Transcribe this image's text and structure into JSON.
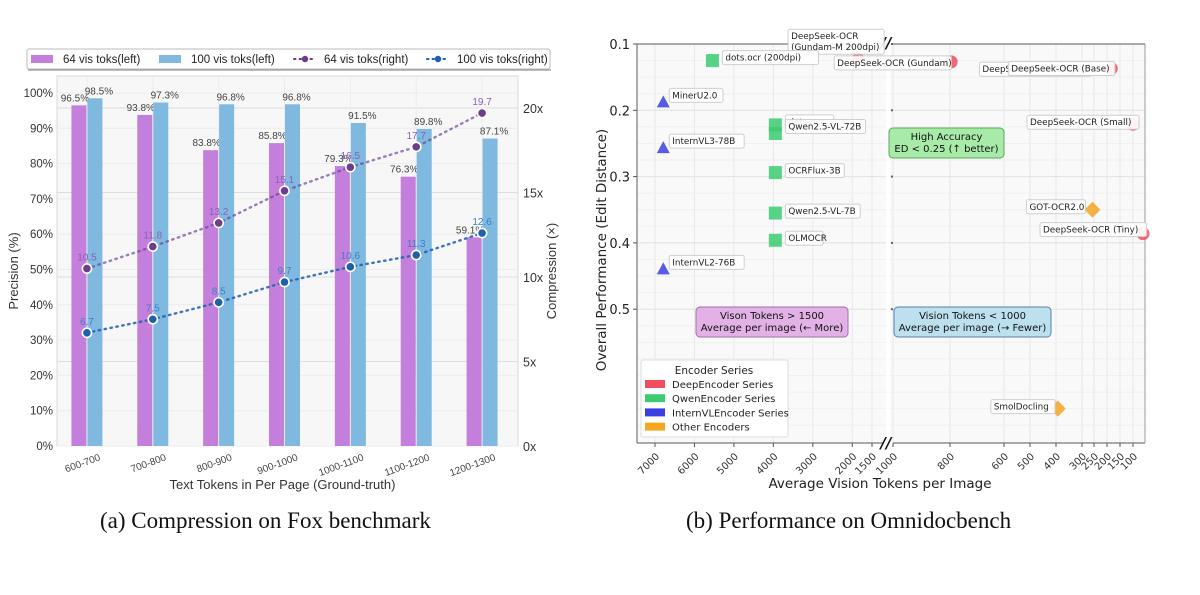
{
  "captions": {
    "a": "(a) Compression on Fox benchmark",
    "b": "(b) Performance on Omnidocbench"
  },
  "chart_data": [
    {
      "type": "bar",
      "title": "",
      "xlabel": "Text Tokens in Per Page (Ground-truth)",
      "ylabel": "Precision (%)",
      "ylabel_right": "Compression (×)",
      "categories": [
        "600-700",
        "700-800",
        "800-900",
        "900-1000",
        "1000-1100",
        "1100-1200",
        "1200-1300"
      ],
      "ylim": [
        0,
        100
      ],
      "ylim_right": [
        0,
        23.3
      ],
      "yticks": [
        "0%",
        "10%",
        "20%",
        "30%",
        "40%",
        "50%",
        "60%",
        "70%",
        "80%",
        "90%",
        "100%"
      ],
      "yticks_right": [
        "0x",
        "5x",
        "10x",
        "15x",
        "20x"
      ],
      "legend_position": "top",
      "grid": true,
      "series": [
        {
          "name": "64 vis toks(left)",
          "kind": "bar",
          "axis": "left",
          "color": "#c47fdc",
          "values": [
            96.5,
            93.8,
            83.8,
            85.8,
            79.3,
            76.3,
            59.1
          ],
          "labels": [
            "96.5%",
            "93.8%",
            "83.8%",
            "85.8%",
            "79.3%",
            "76.3%",
            "59.1%"
          ]
        },
        {
          "name": "100 vis toks(left)",
          "kind": "bar",
          "axis": "left",
          "color": "#7fb9e0",
          "values": [
            98.5,
            97.3,
            96.8,
            96.8,
            91.5,
            89.8,
            87.1
          ],
          "labels": [
            "98.5%",
            "97.3%",
            "96.8%",
            "96.8%",
            "91.5%",
            "89.8%",
            "87.1%"
          ]
        },
        {
          "name": "64 vis toks(right)",
          "kind": "line",
          "axis": "right",
          "color": "#6a3d8f",
          "values": [
            10.5,
            11.8,
            13.2,
            15.1,
            16.5,
            17.7,
            19.7
          ],
          "labels": [
            "10.5",
            "11.8",
            "13.2",
            "15.1",
            "16.5",
            "17.7",
            "19.7"
          ]
        },
        {
          "name": "100 vis toks(right)",
          "kind": "line",
          "axis": "right",
          "color": "#1f5fb0",
          "values": [
            6.7,
            7.5,
            8.5,
            9.7,
            10.6,
            11.3,
            12.6
          ],
          "labels": [
            "6.7",
            "7.5",
            "8.5",
            "9.7",
            "10.6",
            "11.3",
            "12.6"
          ]
        }
      ]
    },
    {
      "type": "scatter",
      "title": "",
      "xlabel": "Average Vision Tokens per Image",
      "ylabel": "Overall Performance (Edit Distance)",
      "x_axis": "broken",
      "x_left_segment_ticks": [
        7000,
        6000,
        5000,
        4000,
        3000,
        2000,
        1500
      ],
      "x_right_segment_ticks": [
        1000,
        800,
        600,
        500,
        400,
        300,
        250,
        200,
        150,
        100
      ],
      "yticks": [
        0.1,
        0.2,
        0.3,
        0.4,
        0.5
      ],
      "ylim": [
        0.1,
        0.7
      ],
      "y_inverted": true,
      "grid": true,
      "legend_title": "Encoder Series",
      "legend_position": "bottom-left",
      "legend": [
        {
          "name": "DeepEncoder Series",
          "color": "#f04e5e"
        },
        {
          "name": "QwenEncoder Series",
          "color": "#3ccb6e"
        },
        {
          "name": "InternVLEncoder Series",
          "color": "#3b3fe0"
        },
        {
          "name": "Other Encoders",
          "color": "#f5a623"
        }
      ],
      "points": [
        {
          "label": "DeepSeek-OCR (Gundam-M 200dpi)",
          "series": "DeepEncoder Series",
          "marker": "circle",
          "x": 1853,
          "y": 0.123
        },
        {
          "label": "DeepSeek-OCR (Gundam)",
          "series": "DeepEncoder Series",
          "marker": "circle",
          "x": 795,
          "y": 0.127
        },
        {
          "label": "DeepSeek-OCR (Large)",
          "series": "DeepEncoder Series",
          "marker": "circle",
          "x": 285,
          "y": 0.138
        },
        {
          "label": "DeepSeek-OCR (Base)",
          "series": "DeepEncoder Series",
          "marker": "circle",
          "x": 182,
          "y": 0.137
        },
        {
          "label": "DeepSeek-OCR (Small)",
          "series": "DeepEncoder Series",
          "marker": "circle",
          "x": 100,
          "y": 0.221
        },
        {
          "label": "DeepSeek-OCR (Tiny)",
          "series": "DeepEncoder Series",
          "marker": "circle",
          "x": 64,
          "y": 0.386
        },
        {
          "label": "dots.ocr (200dpi)",
          "series": "QwenEncoder Series",
          "marker": "square",
          "x": 5545,
          "y": 0.125
        },
        {
          "label": "dots.ocr",
          "series": "QwenEncoder Series",
          "marker": "square",
          "x": 3950,
          "y": 0.222
        },
        {
          "label": "Qwen2.5-VL-72B",
          "series": "QwenEncoder Series",
          "marker": "square",
          "x": 3950,
          "y": 0.235
        },
        {
          "label": "OCRFlux-3B",
          "series": "QwenEncoder Series",
          "marker": "square",
          "x": 3950,
          "y": 0.294
        },
        {
          "label": "Qwen2.5-VL-7B",
          "series": "QwenEncoder Series",
          "marker": "square",
          "x": 3950,
          "y": 0.355
        },
        {
          "label": "OLMOCR",
          "series": "QwenEncoder Series",
          "marker": "square",
          "x": 3950,
          "y": 0.396
        },
        {
          "label": "MinerU2.0",
          "series": "InternVLEncoder Series",
          "marker": "triangle",
          "x": 6790,
          "y": 0.188
        },
        {
          "label": "InternVL3-78B",
          "series": "InternVLEncoder Series",
          "marker": "triangle",
          "x": 6790,
          "y": 0.257
        },
        {
          "label": "InternVL2-76B",
          "series": "InternVLEncoder Series",
          "marker": "triangle",
          "x": 6790,
          "y": 0.44
        },
        {
          "label": "GOT-OCR2.0",
          "series": "Other Encoders",
          "marker": "diamond",
          "x": 256,
          "y": 0.35
        },
        {
          "label": "SmolDocling",
          "series": "Other Encoders",
          "marker": "diamond",
          "x": 392,
          "y": 0.65
        }
      ],
      "annotations": [
        {
          "id": "high-accuracy",
          "lines": [
            "High Accuracy",
            "ED < 0.25 (↑ better)"
          ],
          "fill": "#a8eaa8",
          "stroke": "#5aa85a"
        },
        {
          "id": "more-tokens",
          "lines": [
            "Vison Tokens > 1500",
            "Average per image (← More)"
          ],
          "fill": "#e2b2e6",
          "stroke": "#a070a8"
        },
        {
          "id": "fewer-tokens",
          "lines": [
            "Vision Tokens < 1000",
            "Average per image (→ Fewer)"
          ],
          "fill": "#bde0ef",
          "stroke": "#5a7fa8"
        }
      ]
    }
  ]
}
